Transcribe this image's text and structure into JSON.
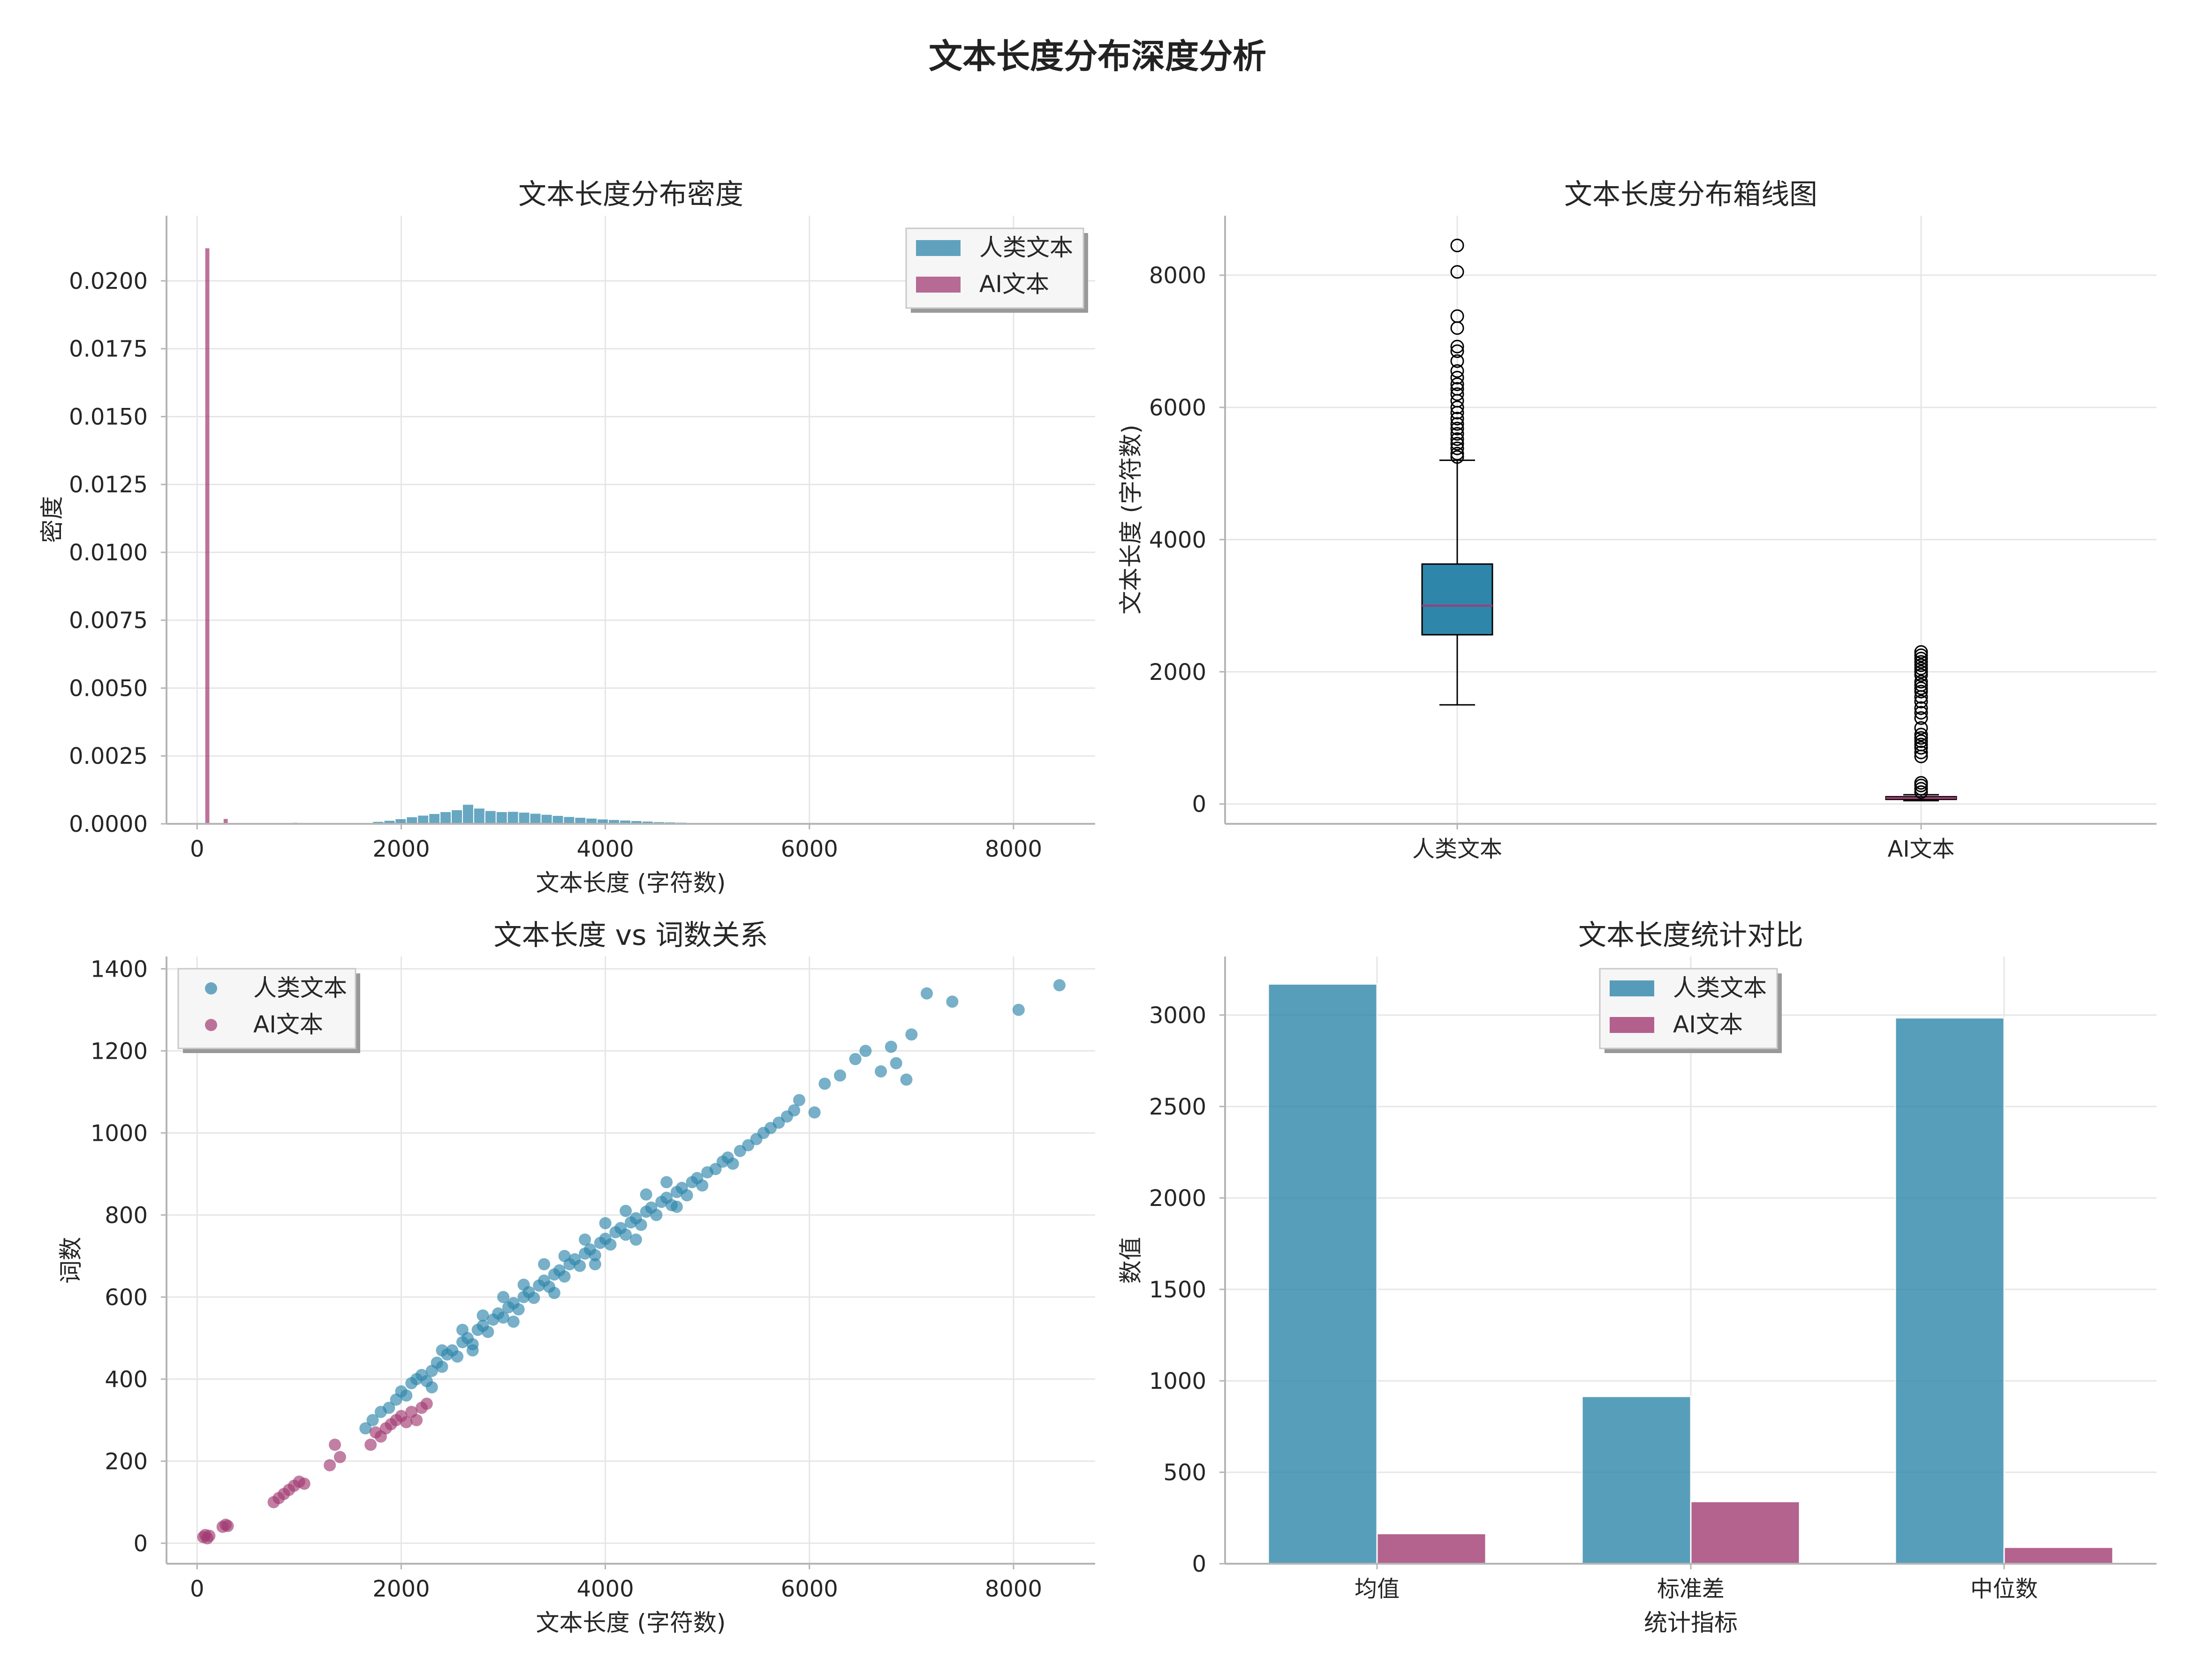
{
  "figure": {
    "title": "文本长度分布深度分析",
    "colors": {
      "human": "#2e86ab",
      "ai": "#a23b72",
      "grid": "#e6e6e6",
      "spine": "#b5b5b5"
    }
  },
  "chart_data": [
    {
      "id": "hist",
      "type": "bar",
      "title": "文本长度分布密度",
      "xlabel": "文本长度 (字符数)",
      "ylabel": "密度",
      "xlim": [
        -300,
        8800
      ],
      "ylim": [
        0,
        0.0224
      ],
      "xticks": [
        0,
        2000,
        4000,
        6000,
        8000
      ],
      "yticks": [
        0.0,
        0.0025,
        0.005,
        0.0075,
        0.01,
        0.0125,
        0.015,
        0.0175,
        0.02
      ],
      "ytick_labels": [
        "0.0000",
        "0.0025",
        "0.0050",
        "0.0075",
        "0.0100",
        "0.0125",
        "0.0150",
        "0.0175",
        "0.0200"
      ],
      "grid": true,
      "legend": {
        "position": "top-right",
        "entries": [
          "人类文本",
          "AI文本"
        ]
      },
      "series": [
        {
          "name": "人类文本",
          "bin_width": 110,
          "bins": [
            [
              1500,
              2e-05
            ],
            [
              1610,
              5e-05
            ],
            [
              1720,
              9e-05
            ],
            [
              1830,
              0.00013
            ],
            [
              1940,
              0.00019
            ],
            [
              2050,
              0.00026
            ],
            [
              2160,
              0.00032
            ],
            [
              2270,
              0.00038
            ],
            [
              2380,
              0.00045
            ],
            [
              2490,
              0.00052
            ],
            [
              2600,
              0.00072
            ],
            [
              2710,
              0.00058
            ],
            [
              2820,
              0.00049
            ],
            [
              2930,
              0.00045
            ],
            [
              3040,
              0.00046
            ],
            [
              3150,
              0.00043
            ],
            [
              3260,
              0.00039
            ],
            [
              3370,
              0.00035
            ],
            [
              3480,
              0.00031
            ],
            [
              3590,
              0.00027
            ],
            [
              3700,
              0.00024
            ],
            [
              3810,
              0.00021
            ],
            [
              3920,
              0.00018
            ],
            [
              4030,
              0.00016
            ],
            [
              4140,
              0.00014
            ],
            [
              4250,
              0.00012
            ],
            [
              4360,
              0.0001
            ],
            [
              4470,
              8e-05
            ],
            [
              4580,
              7e-05
            ],
            [
              4690,
              6e-05
            ],
            [
              4800,
              5e-05
            ],
            [
              4910,
              4e-05
            ],
            [
              5020,
              3e-05
            ],
            [
              5130,
              2e-05
            ],
            [
              5240,
              2e-05
            ],
            [
              5350,
              1e-05
            ]
          ]
        },
        {
          "name": "AI文本",
          "bin_width": 40,
          "bins": [
            [
              80,
              0.0212
            ],
            [
              260,
              0.00018
            ],
            [
              940,
              4e-05
            ],
            [
              1000,
              3e-05
            ],
            [
              1700,
              3e-05
            ],
            [
              1780,
              3e-05
            ],
            [
              1900,
              4e-05
            ],
            [
              2000,
              4e-05
            ],
            [
              2100,
              4e-05
            ],
            [
              2200,
              3e-05
            ]
          ]
        }
      ]
    },
    {
      "id": "box",
      "type": "box",
      "title": "文本长度分布箱线图",
      "xlabel": "",
      "ylabel": "文本长度 (字符数)",
      "categories": [
        "人类文本",
        "AI文本"
      ],
      "ylim": [
        -300,
        8900
      ],
      "yticks": [
        0,
        2000,
        4000,
        6000,
        8000
      ],
      "grid": true,
      "boxes": [
        {
          "name": "人类文本",
          "q1": 2560,
          "median": 3000,
          "q3": 3630,
          "whisker_low": 1500,
          "whisker_high": 5200,
          "outliers": [
            5250,
            5300,
            5380,
            5450,
            5520,
            5600,
            5680,
            5750,
            5830,
            5920,
            6000,
            6100,
            6200,
            6280,
            6350,
            6450,
            6550,
            6700,
            6850,
            6920,
            7200,
            7380,
            8050,
            8450
          ]
        },
        {
          "name": "AI文本",
          "q1": 70,
          "median": 90,
          "q3": 110,
          "whisker_low": 50,
          "whisker_high": 140,
          "outliers": [
            180,
            230,
            280,
            320,
            720,
            780,
            850,
            900,
            950,
            1000,
            1050,
            1150,
            1300,
            1380,
            1450,
            1550,
            1620,
            1700,
            1750,
            1800,
            1850,
            1950,
            2000,
            2050,
            2100,
            2150,
            2200,
            2250,
            2300
          ]
        }
      ]
    },
    {
      "id": "scatter",
      "type": "scatter",
      "title": "文本长度 vs 词数关系",
      "xlabel": "文本长度 (字符数)",
      "ylabel": "词数",
      "xlim": [
        -300,
        8800
      ],
      "ylim": [
        -50,
        1430
      ],
      "xticks": [
        0,
        2000,
        4000,
        6000,
        8000
      ],
      "yticks": [
        0,
        200,
        400,
        600,
        800,
        1000,
        1200,
        1400
      ],
      "grid": true,
      "legend": {
        "position": "top-left",
        "entries": [
          "人类文本",
          "AI文本"
        ]
      },
      "series": [
        {
          "name": "人类文本",
          "points": [
            [
              1650,
              280
            ],
            [
              1720,
              300
            ],
            [
              1800,
              320
            ],
            [
              1880,
              330
            ],
            [
              1950,
              350
            ],
            [
              2000,
              370
            ],
            [
              2050,
              360
            ],
            [
              2100,
              390
            ],
            [
              2150,
              400
            ],
            [
              2200,
              410
            ],
            [
              2250,
              395
            ],
            [
              2300,
              420
            ],
            [
              2350,
              440
            ],
            [
              2400,
              430
            ],
            [
              2450,
              460
            ],
            [
              2500,
              470
            ],
            [
              2550,
              455
            ],
            [
              2600,
              490
            ],
            [
              2650,
              500
            ],
            [
              2700,
              485
            ],
            [
              2750,
              520
            ],
            [
              2800,
              530
            ],
            [
              2850,
              515
            ],
            [
              2900,
              545
            ],
            [
              2950,
              560
            ],
            [
              3000,
              550
            ],
            [
              3050,
              575
            ],
            [
              3100,
              585
            ],
            [
              3150,
              570
            ],
            [
              3200,
              600
            ],
            [
              3250,
              612
            ],
            [
              3300,
              598
            ],
            [
              3350,
              628
            ],
            [
              3400,
              640
            ],
            [
              3450,
              625
            ],
            [
              3500,
              655
            ],
            [
              3550,
              665
            ],
            [
              3600,
              650
            ],
            [
              3650,
              680
            ],
            [
              3700,
              692
            ],
            [
              3750,
              676
            ],
            [
              3800,
              706
            ],
            [
              3850,
              716
            ],
            [
              3900,
              702
            ],
            [
              3950,
              732
            ],
            [
              4000,
              742
            ],
            [
              4050,
              728
            ],
            [
              4100,
              758
            ],
            [
              4150,
              768
            ],
            [
              4200,
              752
            ],
            [
              4250,
              782
            ],
            [
              4300,
              792
            ],
            [
              4350,
              776
            ],
            [
              4400,
              808
            ],
            [
              4450,
              818
            ],
            [
              4500,
              800
            ],
            [
              4550,
              832
            ],
            [
              4600,
              842
            ],
            [
              4650,
              824
            ],
            [
              4700,
              856
            ],
            [
              4750,
              866
            ],
            [
              4800,
              848
            ],
            [
              4850,
              880
            ],
            [
              4900,
              890
            ],
            [
              4950,
              872
            ],
            [
              5000,
              904
            ],
            [
              5080,
              912
            ],
            [
              5150,
              930
            ],
            [
              5200,
              940
            ],
            [
              5250,
              925
            ],
            [
              5320,
              956
            ],
            [
              5400,
              970
            ],
            [
              5480,
              985
            ],
            [
              5550,
              1000
            ],
            [
              5620,
              1012
            ],
            [
              5700,
              1025
            ],
            [
              5780,
              1040
            ],
            [
              5850,
              1055
            ],
            [
              5900,
              1080
            ],
            [
              6050,
              1050
            ],
            [
              6150,
              1120
            ],
            [
              6300,
              1140
            ],
            [
              6450,
              1180
            ],
            [
              6550,
              1200
            ],
            [
              6700,
              1150
            ],
            [
              6800,
              1210
            ],
            [
              6850,
              1170
            ],
            [
              6950,
              1130
            ],
            [
              7000,
              1240
            ],
            [
              7150,
              1340
            ],
            [
              7400,
              1320
            ],
            [
              8050,
              1300
            ],
            [
              8450,
              1360
            ],
            [
              2300,
              380
            ],
            [
              2700,
              470
            ],
            [
              3100,
              540
            ],
            [
              3500,
              610
            ],
            [
              3900,
              680
            ],
            [
              4300,
              740
            ],
            [
              4700,
              820
            ],
            [
              2400,
              470
            ],
            [
              2800,
              555
            ],
            [
              3200,
              630
            ],
            [
              3600,
              700
            ],
            [
              4000,
              780
            ],
            [
              4400,
              850
            ],
            [
              2600,
              520
            ],
            [
              3000,
              600
            ],
            [
              3400,
              680
            ],
            [
              3800,
              740
            ],
            [
              4200,
              810
            ],
            [
              4600,
              880
            ]
          ]
        },
        {
          "name": "AI文本",
          "points": [
            [
              60,
              15
            ],
            [
              80,
              20
            ],
            [
              100,
              12
            ],
            [
              120,
              18
            ],
            [
              250,
              40
            ],
            [
              280,
              45
            ],
            [
              300,
              42
            ],
            [
              750,
              100
            ],
            [
              800,
              110
            ],
            [
              850,
              120
            ],
            [
              900,
              130
            ],
            [
              950,
              140
            ],
            [
              1000,
              150
            ],
            [
              1050,
              145
            ],
            [
              1300,
              190
            ],
            [
              1350,
              240
            ],
            [
              1400,
              210
            ],
            [
              1700,
              240
            ],
            [
              1750,
              270
            ],
            [
              1800,
              260
            ],
            [
              1850,
              280
            ],
            [
              1900,
              290
            ],
            [
              1950,
              300
            ],
            [
              2000,
              310
            ],
            [
              2050,
              295
            ],
            [
              2100,
              320
            ],
            [
              2150,
              300
            ],
            [
              2200,
              330
            ],
            [
              2250,
              340
            ]
          ]
        }
      ]
    },
    {
      "id": "bars",
      "type": "bar",
      "title": "文本长度统计对比",
      "xlabel": "统计指标",
      "ylabel": "数值",
      "categories": [
        "均值",
        "标准差",
        "中位数"
      ],
      "ylim": [
        0,
        3320
      ],
      "yticks": [
        0,
        500,
        1000,
        1500,
        2000,
        2500,
        3000
      ],
      "grid": true,
      "legend": {
        "position": "top-center",
        "entries": [
          "人类文本",
          "AI文本"
        ]
      },
      "series": [
        {
          "name": "人类文本",
          "values": [
            3170,
            915,
            2985
          ]
        },
        {
          "name": "AI文本",
          "values": [
            165,
            340,
            90
          ]
        }
      ]
    }
  ]
}
